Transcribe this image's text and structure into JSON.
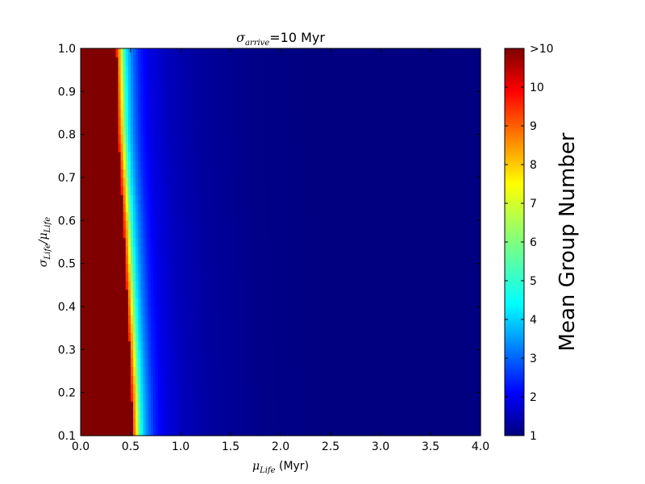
{
  "chart_data": {
    "type": "heatmap",
    "title": "σarrive=10 Myr",
    "title_symbol": "σ",
    "title_subscript": "arrive",
    "title_rest": "=10 Myr",
    "xlabel": "μLife (Myr)",
    "xlabel_symbol": "μ",
    "xlabel_subscript": "Life",
    "xlabel_rest": " (Myr)",
    "ylabel": "σLife/μLife",
    "ylabel_symbol_1": "σ",
    "ylabel_subscript_1": "Life",
    "ylabel_sep": "/",
    "ylabel_symbol_2": "μ",
    "ylabel_subscript_2": "Life",
    "xlim": [
      0.0,
      4.0
    ],
    "ylim": [
      0.1,
      1.0
    ],
    "x_ticks": [
      "0.0",
      "0.5",
      "1.0",
      "1.5",
      "2.0",
      "2.5",
      "3.0",
      "3.5",
      "4.0"
    ],
    "y_ticks": [
      "0.1",
      "0.2",
      "0.3",
      "0.4",
      "0.5",
      "0.6",
      "0.7",
      "0.8",
      "0.9",
      "1.0"
    ],
    "colorbar": {
      "label": "Mean Group Number",
      "range": [
        1,
        11
      ],
      "ticks": [
        "1",
        "2",
        "3",
        "4",
        "5",
        "6",
        "7",
        "8",
        "9",
        "10",
        ">10"
      ],
      "colormap": "jet"
    },
    "grid": false,
    "data_description_rows": [
      {
        "y": 1.0,
        "boundary_x": 0.36
      },
      {
        "y": 0.8,
        "boundary_x": 0.38
      },
      {
        "y": 0.6,
        "boundary_x": 0.43
      },
      {
        "y": 0.4,
        "boundary_x": 0.47
      },
      {
        "y": 0.2,
        "boundary_x": 0.51
      },
      {
        "y": 0.1,
        "boundary_x": 0.52
      }
    ],
    "value_profile_beyond_boundary": [
      {
        "dx": 0.0,
        "value": 9.5
      },
      {
        "dx": 0.03,
        "value": 8.0
      },
      {
        "dx": 0.06,
        "value": 6.0
      },
      {
        "dx": 0.1,
        "value": 4.5
      },
      {
        "dx": 0.15,
        "value": 3.5
      },
      {
        "dx": 0.22,
        "value": 2.6
      },
      {
        "dx": 0.32,
        "value": 2.0
      },
      {
        "dx": 0.5,
        "value": 1.6
      },
      {
        "dx": 0.8,
        "value": 1.3
      },
      {
        "dx": 1.3,
        "value": 1.1
      },
      {
        "dx": 2.0,
        "value": 1.0
      }
    ]
  }
}
